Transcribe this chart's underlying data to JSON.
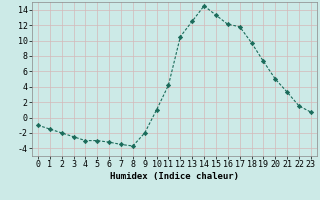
{
  "x": [
    0,
    1,
    2,
    3,
    4,
    5,
    6,
    7,
    8,
    9,
    10,
    11,
    12,
    13,
    14,
    15,
    16,
    17,
    18,
    19,
    20,
    21,
    22,
    23
  ],
  "y": [
    -1,
    -1.5,
    -2,
    -2.5,
    -3,
    -3,
    -3.2,
    -3.5,
    -3.7,
    -2,
    1,
    4.2,
    10.5,
    12.5,
    14.5,
    13.3,
    12.1,
    11.8,
    9.7,
    7.3,
    5.0,
    3.3,
    1.5,
    0.7
  ],
  "line_color": "#1a6b5a",
  "marker": "D",
  "marker_size": 2.2,
  "bg_color": "#cceae7",
  "grid_color_major": "#b0d4d0",
  "grid_color_minor": "#d8f0ee",
  "xlabel": "Humidex (Indice chaleur)",
  "ylim": [
    -5,
    15
  ],
  "xlim": [
    -0.5,
    23.5
  ],
  "yticks": [
    -4,
    -2,
    0,
    2,
    4,
    6,
    8,
    10,
    12,
    14
  ],
  "xlabel_fontsize": 6.5,
  "tick_fontsize": 6
}
